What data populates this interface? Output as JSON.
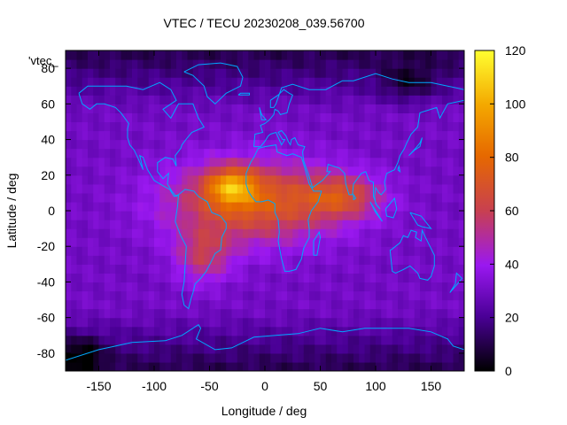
{
  "chart_data": {
    "type": "heatmap",
    "title": "VTEC / TECU 20230208_039.56700",
    "xlabel": "Longitude / deg",
    "ylabel": "Latitude / deg",
    "series_label": "'vtec_",
    "xlim": [
      -180,
      180
    ],
    "ylim": [
      -90,
      90
    ],
    "x_ticks": [
      -150,
      -100,
      -50,
      0,
      50,
      100,
      150
    ],
    "y_ticks": [
      -80,
      -60,
      -40,
      -20,
      0,
      20,
      40,
      60,
      80
    ],
    "colorbar": {
      "range": [
        0,
        120
      ],
      "ticks": [
        0,
        20,
        40,
        60,
        80,
        100,
        120
      ],
      "palette": [
        "#000000",
        "#5a00a0",
        "#9c1ff0",
        "#d0402a",
        "#e86800",
        "#f4b000",
        "#ffff40"
      ]
    },
    "grid_spacing_deg": 5,
    "anomaly_peak": {
      "center": [
        -30,
        14
      ],
      "value": 118,
      "description": "equatorial ionization anomaly maximum over the Atlantic / NE South America"
    },
    "values_deg": {
      "background_midlat": 30,
      "polar": 10,
      "equatorial_band": 75,
      "peak": 118
    },
    "overlay": "coastlines"
  }
}
